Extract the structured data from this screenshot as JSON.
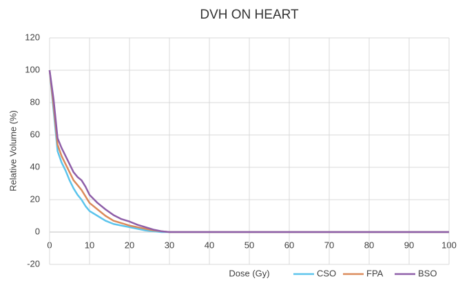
{
  "chart_data": {
    "type": "line",
    "title": "DVH ON HEART",
    "xlabel": "Dose (Gy)",
    "ylabel": "Relative Volume (%)",
    "x": [
      0,
      1,
      2,
      3,
      4,
      5,
      6,
      7,
      8,
      9,
      10,
      12,
      14,
      16,
      18,
      20,
      22,
      24,
      26,
      28,
      30,
      35,
      40,
      50,
      60,
      70,
      80,
      90,
      100
    ],
    "series": [
      {
        "name": "CSO",
        "color": "#5bc4ec",
        "values": [
          100,
          75,
          50,
          43,
          38,
          32,
          27,
          23,
          20,
          16,
          13,
          10,
          7,
          5,
          4,
          3,
          2,
          1,
          0.5,
          0,
          0,
          0,
          0,
          0,
          0,
          0,
          0,
          0,
          0
        ]
      },
      {
        "name": "FPA",
        "color": "#db8a5a",
        "values": [
          100,
          78,
          54,
          47,
          42,
          37,
          32,
          29,
          26,
          22,
          18,
          14,
          10,
          7,
          5.5,
          4,
          3,
          2,
          1,
          0.5,
          0,
          0,
          0,
          0,
          0,
          0,
          0,
          0,
          0
        ]
      },
      {
        "name": "BSO",
        "color": "#8e5ea8",
        "values": [
          100,
          82,
          58,
          52,
          47,
          42,
          37,
          34,
          32,
          28,
          23,
          18,
          14,
          10.5,
          8,
          6.5,
          4.5,
          3,
          1.5,
          0.5,
          0,
          0,
          0,
          0,
          0,
          0,
          0,
          0,
          0
        ]
      }
    ],
    "xlim": [
      0,
      100
    ],
    "xticks": [
      0,
      10,
      20,
      30,
      40,
      50,
      60,
      70,
      80,
      90,
      100
    ],
    "ylim": [
      -20,
      120
    ],
    "yticks": [
      -20,
      0,
      20,
      40,
      60,
      80,
      100,
      120
    ],
    "grid": true,
    "legend": "bottom-right"
  }
}
